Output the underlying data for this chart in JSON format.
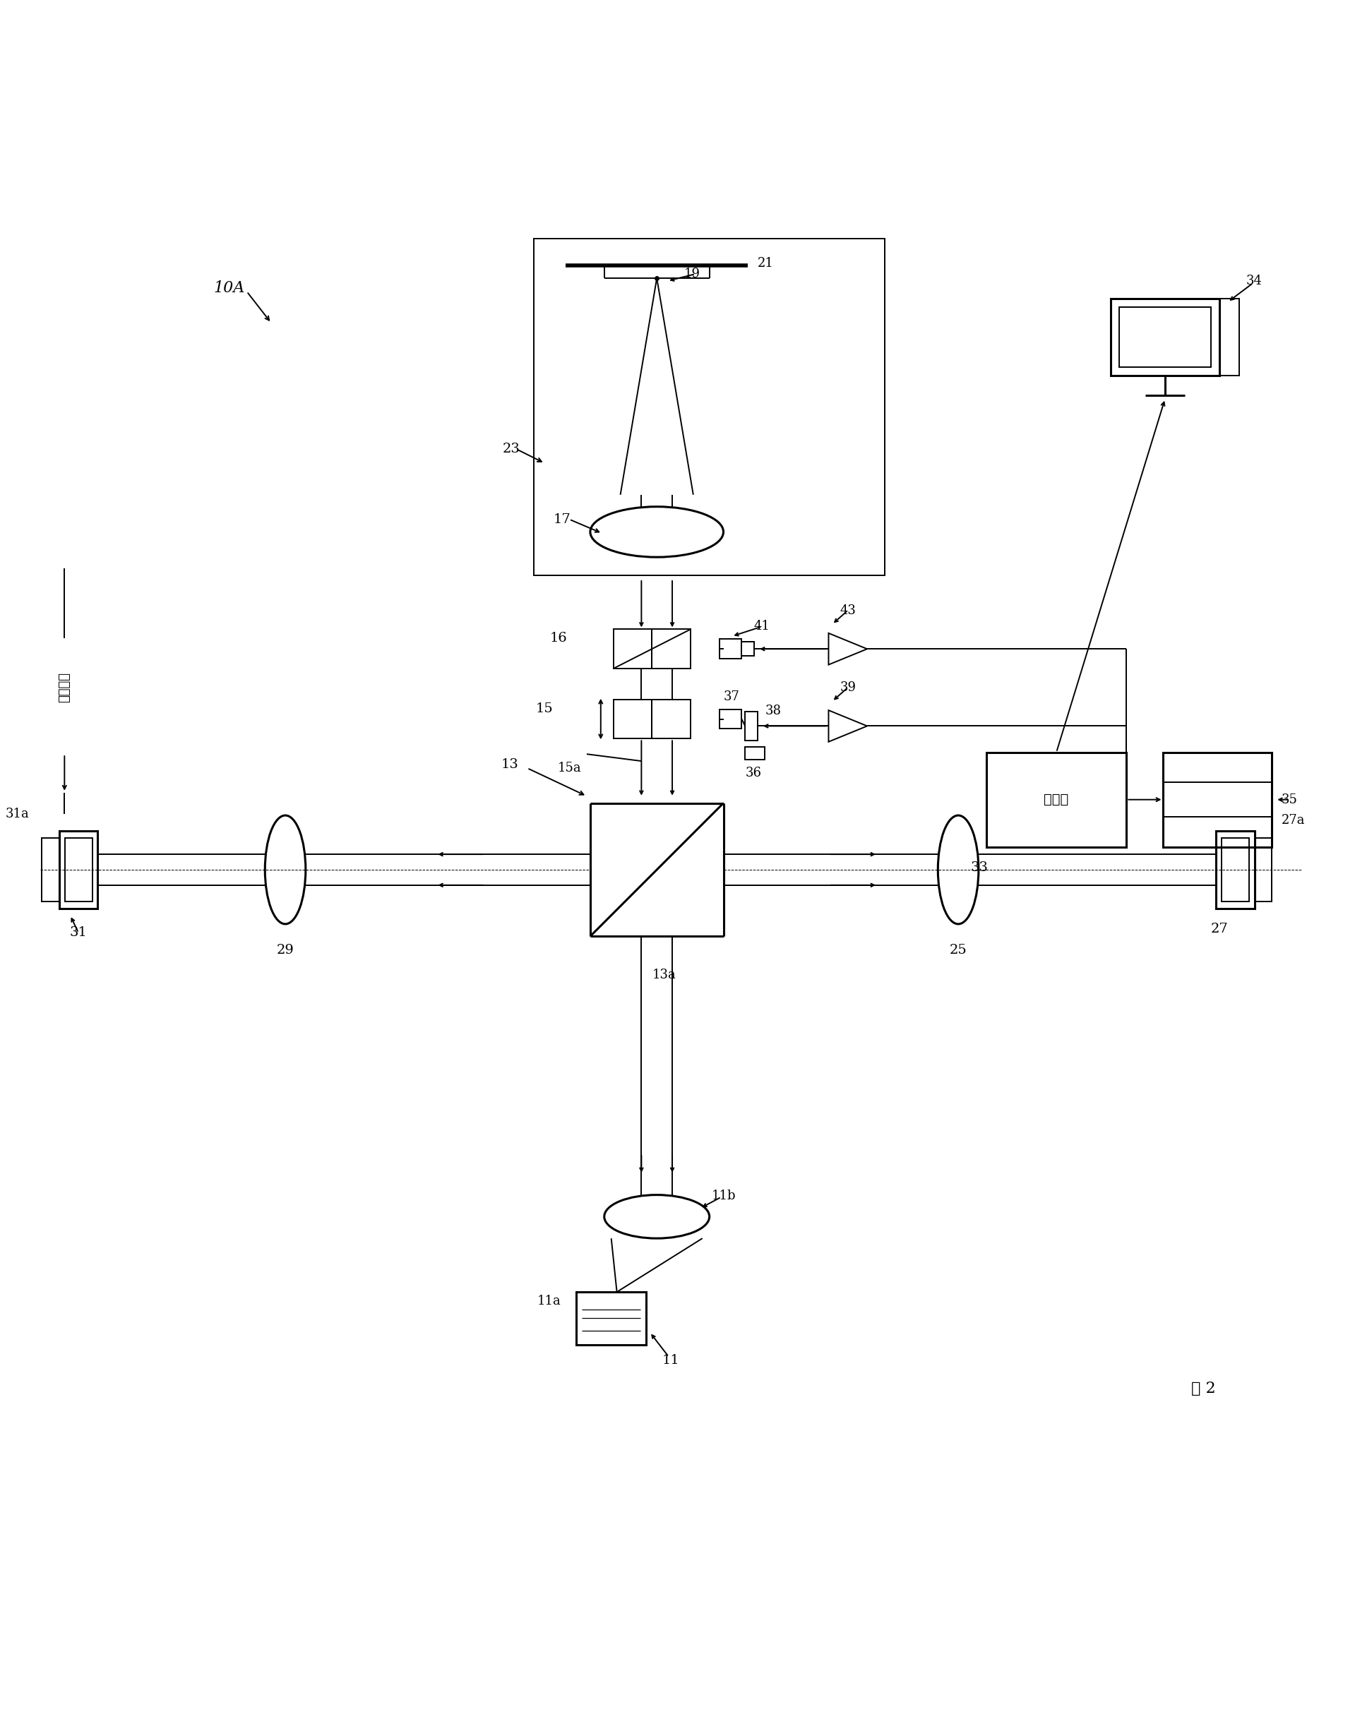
{
  "bg": "#ffffff",
  "lc": "#000000",
  "fig_label": "图 2",
  "system_label": "10A",
  "computer_label": "计算机",
  "arrow_label": "向计算机"
}
